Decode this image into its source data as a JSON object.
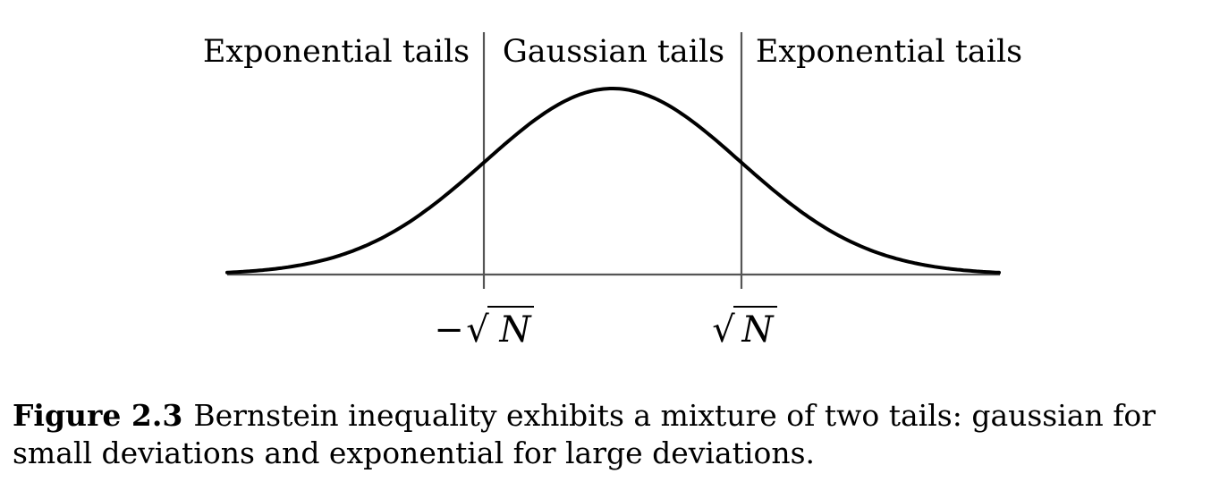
{
  "figure": {
    "region_labels": {
      "left": "Exponential tails",
      "middle": "Gaussian tails",
      "right": "Exponential tails"
    },
    "ticks": {
      "left": {
        "sign": "−",
        "radical": "√",
        "symbol": "N"
      },
      "right": {
        "sign": "",
        "radical": "√",
        "symbol": "N"
      }
    }
  },
  "caption": {
    "label": "Figure 2.3",
    "text": "Bernstein inequality exhibits a mixture of two tails: gaussian for small deviations and exponential for large deviations."
  }
}
